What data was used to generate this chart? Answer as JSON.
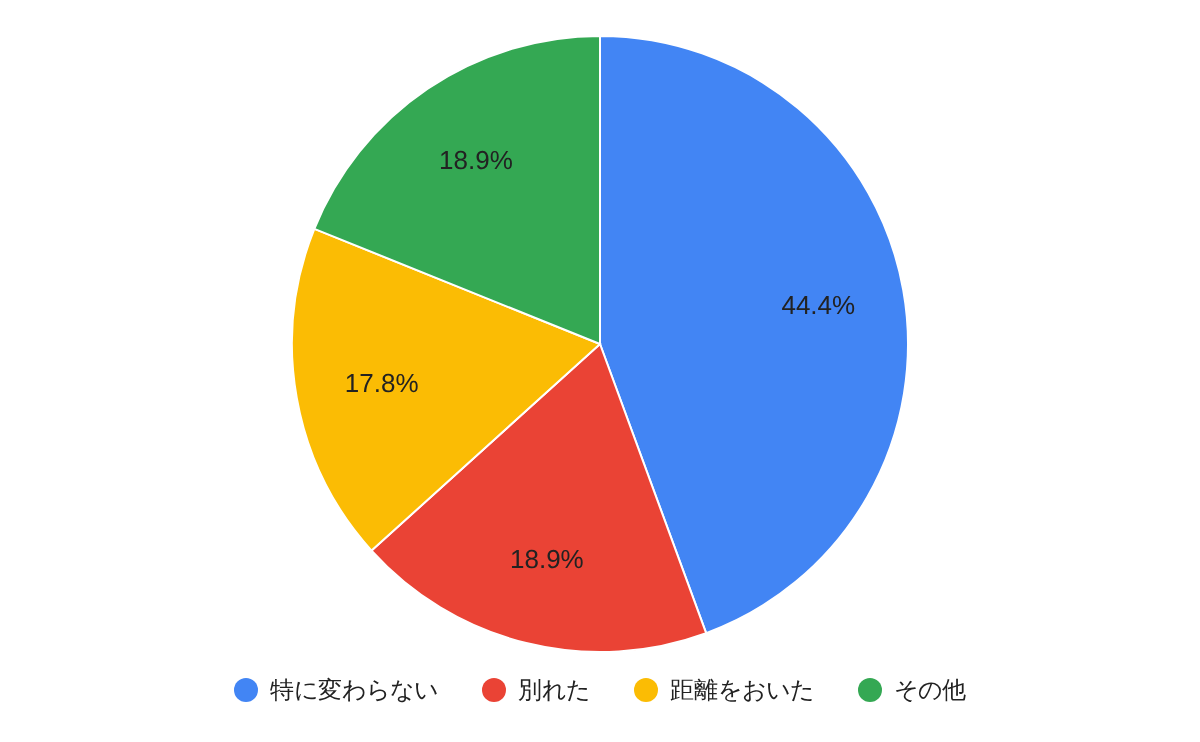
{
  "chart_data": {
    "type": "pie",
    "categories": [
      "特に変わらない",
      "別れた",
      "距離をおいた",
      "その他"
    ],
    "values": [
      44.4,
      18.9,
      17.8,
      18.9
    ],
    "value_labels": [
      "44.4%",
      "18.9%",
      "17.8%",
      "18.9%"
    ],
    "colors": [
      "#4285f4",
      "#ea4335",
      "#fbbc04",
      "#34a853"
    ],
    "legend": "bottom"
  }
}
